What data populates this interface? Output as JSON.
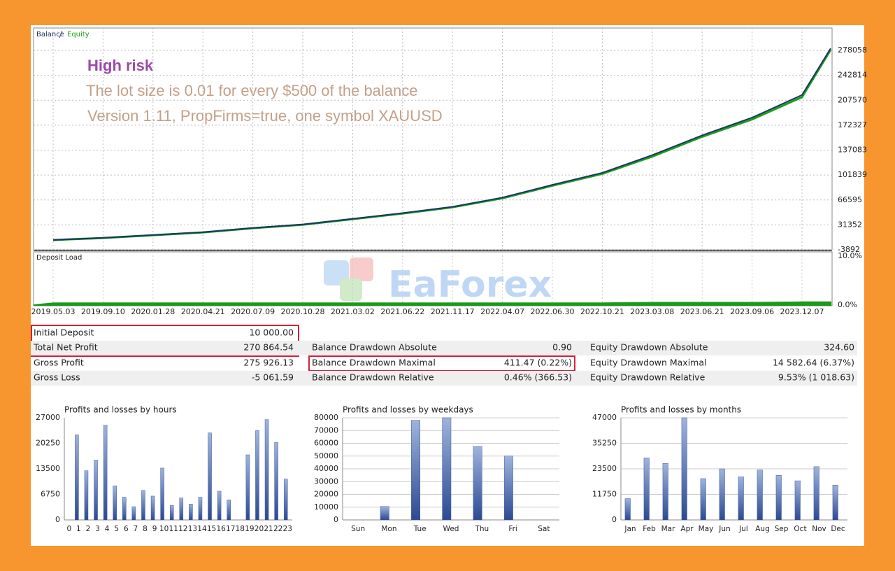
{
  "annotations": {
    "risk": "High risk",
    "lot": "The lot size is 0.01 for every $500 of the balance",
    "version": "Version 1.11, PropFirms=true, one symbol XAUUSD",
    "watermark": "EaForex"
  },
  "chart_data": [
    {
      "type": "line",
      "categories": [
        "2019.05.03",
        "2019.09.10",
        "2020.01.28",
        "2020.04.21",
        "2020.07.09",
        "2020.10.28",
        "2021.03.02",
        "2021.06.22",
        "2021.11.17",
        "2022.04.07",
        "2022.06.30",
        "2022.10.21",
        "2023.03.08",
        "2023.06.21",
        "2023.09.06",
        "2023.12.07",
        null
      ],
      "series": [
        {
          "name": "Balance",
          "color": "#1c3566",
          "values": [
            10000,
            13000,
            17000,
            21000,
            27000,
            32000,
            40000,
            48000,
            57000,
            70000,
            88000,
            105000,
            130000,
            158000,
            183000,
            215000,
            280864
          ]
        },
        {
          "name": "Equity",
          "color": "#1aa01a",
          "values": [
            9900,
            12800,
            16800,
            20700,
            26700,
            31600,
            39500,
            47400,
            56300,
            69000,
            86800,
            103600,
            128000,
            156000,
            180500,
            212000,
            279000
          ]
        }
      ],
      "ylim": [
        -3892,
        309750
      ],
      "yticks": [
        -3892,
        31352,
        66595,
        101839,
        137083,
        172327,
        207570,
        242814,
        278058
      ],
      "grid": true
    },
    {
      "type": "area",
      "title": "Deposit Load",
      "color": "#1a9a1a",
      "values": [
        0.4,
        0.4,
        0.4,
        0.4,
        0.4,
        0.4,
        0.4,
        0.4,
        0.4,
        0.4,
        0.4,
        0.4,
        0.5,
        0.5,
        0.5,
        0.6,
        0.6
      ],
      "ylim": [
        0,
        10
      ],
      "yticks": [
        {
          "value": 0,
          "label": "0.0%"
        },
        {
          "value": 10,
          "label": "10.0%"
        }
      ]
    },
    {
      "type": "bar",
      "title": "Profits and losses by hours",
      "color": "#3d5a9e",
      "categories": [
        "0",
        "1",
        "2",
        "3",
        "4",
        "5",
        "6",
        "7",
        "8",
        "9",
        "10",
        "11",
        "12",
        "13",
        "14",
        "15",
        "16",
        "17",
        "18",
        "19",
        "20",
        "21",
        "22",
        "23"
      ],
      "values": [
        0,
        22500,
        13000,
        15800,
        25000,
        9000,
        6000,
        3500,
        7800,
        6300,
        13700,
        3800,
        5800,
        4200,
        6000,
        23000,
        7600,
        5300,
        0,
        17200,
        23600,
        26500,
        20500,
        10800
      ],
      "ylim": [
        0,
        27000
      ],
      "yticks": [
        0,
        6750,
        13500,
        20250,
        27000
      ]
    },
    {
      "type": "bar",
      "title": "Profits and losses by weekdays",
      "color": "#3d5a9e",
      "categories": [
        "Sun",
        "Mon",
        "Tue",
        "Wed",
        "Thu",
        "Fri",
        "Sat"
      ],
      "values": [
        0,
        10500,
        78000,
        80000,
        57500,
        50000,
        0
      ],
      "ylim": [
        0,
        80000
      ],
      "yticks": [
        0,
        10000,
        20000,
        30000,
        40000,
        50000,
        60000,
        70000,
        80000
      ],
      "grid": true
    },
    {
      "type": "bar",
      "title": "Profits and losses by months",
      "color": "#3d5a9e",
      "categories": [
        "Jan",
        "Feb",
        "Mar",
        "Apr",
        "May",
        "Jun",
        "Jul",
        "Aug",
        "Sep",
        "Oct",
        "Nov",
        "Dec"
      ],
      "values": [
        9800,
        28500,
        26000,
        47000,
        19000,
        23500,
        19800,
        23000,
        20500,
        18000,
        24500,
        16000
      ],
      "ylim": [
        0,
        47000
      ],
      "yticks": [
        0,
        11750,
        23500,
        35250,
        47000
      ],
      "grid": true
    }
  ],
  "stats": [
    [
      "Initial Deposit",
      "10 000.00"
    ],
    [
      "Total Net Profit",
      "270 864.54",
      "Balance Drawdown Absolute",
      "0.90",
      "Equity Drawdown Absolute",
      "324.60"
    ],
    [
      "Gross Profit",
      "275 926.13",
      "Balance Drawdown Maximal",
      "411.47 (0.22%)",
      "Equity Drawdown Maximal",
      "14 582.64 (6.37%)"
    ],
    [
      "Gross Loss",
      "-5 061.59",
      "Balance Drawdown Relative",
      "0.46% (366.53)",
      "Equity Drawdown Relative",
      "9.53% (1 018.63)"
    ]
  ]
}
